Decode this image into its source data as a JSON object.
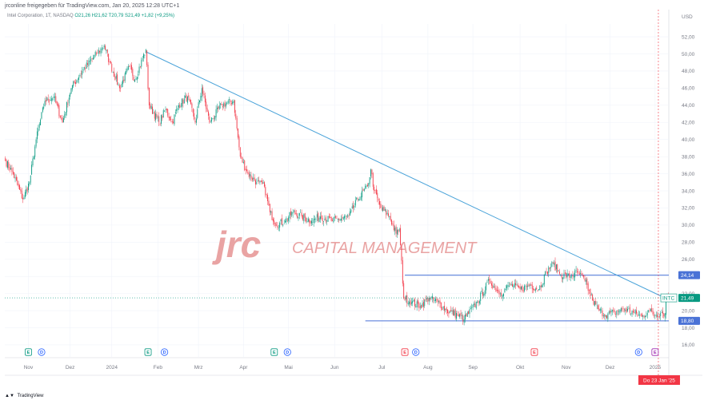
{
  "header": {
    "publisher": "jrconline freigegeben für TradingView.com, Jan 20, 2025 12:28 UTC+1"
  },
  "legend": {
    "symbol": "Intel Corporation, 1T, NASDAQ",
    "ohlc": "O21,26  H21,62  T20,79  S21,49  +1,82 (+9,25%)",
    "last": "21,49",
    "change": "+1,82 (+9,25%)"
  },
  "watermark": {
    "logo": "jrc",
    "name": "CAPITAL MANAGEMENT"
  },
  "footer": {
    "brand": "TradingView"
  },
  "colors": {
    "up": "#089981",
    "down": "#f23645",
    "trendline": "#4aa3d9",
    "level": "#4a72d6",
    "crosshair_badge": "#f23645",
    "earnings_up": "#089981",
    "earnings_down": "#f23645",
    "dividend": "#2962ff"
  },
  "chart_data": {
    "type": "candlestick",
    "title": "",
    "currency": "USD",
    "y_range": [
      14.5,
      53.5
    ],
    "y_ticks": [
      "16,00",
      "18,00",
      "20,00",
      "22,00",
      "24,00",
      "26,00",
      "28,00",
      "30,00",
      "32,00",
      "34,00",
      "36,00",
      "38,00",
      "40,00",
      "42,00",
      "44,00",
      "46,00",
      "48,00",
      "50,00",
      "52,00"
    ],
    "x_labels": [
      "Nov",
      "Dez",
      "2024",
      "Feb",
      "Mrz",
      "Apr",
      "Mai",
      "Jun",
      "Jul",
      "Aug",
      "Sep",
      "Okt",
      "Nov",
      "Dez",
      "2025"
    ],
    "x_label_index": [
      21,
      59,
      97,
      139,
      176,
      217,
      258,
      300,
      343,
      385,
      426,
      469,
      511,
      551,
      592
    ],
    "num_bars": 605,
    "anchors": [
      [
        0,
        37.5
      ],
      [
        7,
        36
      ],
      [
        16,
        33
      ],
      [
        22,
        35
      ],
      [
        28,
        40
      ],
      [
        36,
        44.5
      ],
      [
        44,
        45
      ],
      [
        52,
        42
      ],
      [
        60,
        46
      ],
      [
        70,
        48
      ],
      [
        83,
        50
      ],
      [
        90,
        51
      ],
      [
        95,
        49
      ],
      [
        104,
        46
      ],
      [
        113,
        48.5
      ],
      [
        118,
        47
      ],
      [
        128,
        50.5
      ],
      [
        131,
        44
      ],
      [
        140,
        42
      ],
      [
        146,
        43.5
      ],
      [
        152,
        42
      ],
      [
        158,
        44
      ],
      [
        166,
        45
      ],
      [
        173,
        42
      ],
      [
        179,
        46
      ],
      [
        186,
        42
      ],
      [
        197,
        44
      ],
      [
        208,
        44.5
      ],
      [
        214,
        38
      ],
      [
        221,
        36
      ],
      [
        229,
        35
      ],
      [
        236,
        34.5
      ],
      [
        241,
        31.5
      ],
      [
        247,
        30
      ],
      [
        255,
        30.5
      ],
      [
        262,
        31.5
      ],
      [
        270,
        31
      ],
      [
        279,
        30.5
      ],
      [
        287,
        31
      ],
      [
        298,
        30.5
      ],
      [
        313,
        31
      ],
      [
        321,
        33
      ],
      [
        330,
        34.5
      ],
      [
        333,
        36.5
      ],
      [
        336,
        34
      ],
      [
        342,
        32
      ],
      [
        350,
        31
      ],
      [
        356,
        29
      ],
      [
        359,
        29.5
      ],
      [
        363,
        21.5
      ],
      [
        370,
        21
      ],
      [
        378,
        20.5
      ],
      [
        386,
        21.5
      ],
      [
        394,
        21
      ],
      [
        402,
        20
      ],
      [
        412,
        19.5
      ],
      [
        418,
        19
      ],
      [
        430,
        21
      ],
      [
        441,
        23.5
      ],
      [
        451,
        22
      ],
      [
        460,
        23
      ],
      [
        469,
        22.5
      ],
      [
        478,
        23
      ],
      [
        486,
        22.5
      ],
      [
        493,
        24.5
      ],
      [
        499,
        25.5
      ],
      [
        506,
        24.2
      ],
      [
        515,
        24
      ],
      [
        521,
        24.5
      ],
      [
        528,
        23.5
      ],
      [
        535,
        21.2
      ],
      [
        541,
        20
      ],
      [
        547,
        19.5
      ],
      [
        555,
        19.8
      ],
      [
        563,
        20.2
      ],
      [
        572,
        19.8
      ],
      [
        580,
        19.3
      ],
      [
        586,
        20
      ],
      [
        592,
        19.5
      ],
      [
        598,
        19.8
      ],
      [
        601,
        19.67
      ],
      [
        602,
        21.49
      ]
    ],
    "trendline": {
      "from": [
        129,
        50.2
      ],
      "to": [
        604,
        21.3
      ]
    },
    "levels": [
      {
        "label": "24,14",
        "value": 24.14,
        "x_from": 364
      },
      {
        "label": "18,80",
        "value": 18.8,
        "x_from": 328
      }
    ],
    "last_price": {
      "symbol": "INTC",
      "value": 21.49
    },
    "crosshair": {
      "bar": 595,
      "label": "Do 23 Jan '25"
    },
    "events": [
      {
        "type": "earnings",
        "bar": 21,
        "color": "up",
        "label": "E"
      },
      {
        "type": "dividend",
        "bar": 33,
        "label": "D"
      },
      {
        "type": "earnings",
        "bar": 130,
        "color": "up",
        "label": "E"
      },
      {
        "type": "dividend",
        "bar": 145,
        "label": "D"
      },
      {
        "type": "earnings",
        "bar": 245,
        "color": "up",
        "label": "E"
      },
      {
        "type": "dividend",
        "bar": 257,
        "label": "D"
      },
      {
        "type": "earnings",
        "bar": 364,
        "color": "down",
        "label": "E"
      },
      {
        "type": "dividend",
        "bar": 374,
        "label": "D"
      },
      {
        "type": "earnings",
        "bar": 482,
        "color": "down",
        "label": "E"
      },
      {
        "type": "dividend",
        "bar": 577,
        "label": "D"
      },
      {
        "type": "earnings",
        "bar": 592,
        "color": "neutral",
        "label": "E"
      }
    ]
  }
}
